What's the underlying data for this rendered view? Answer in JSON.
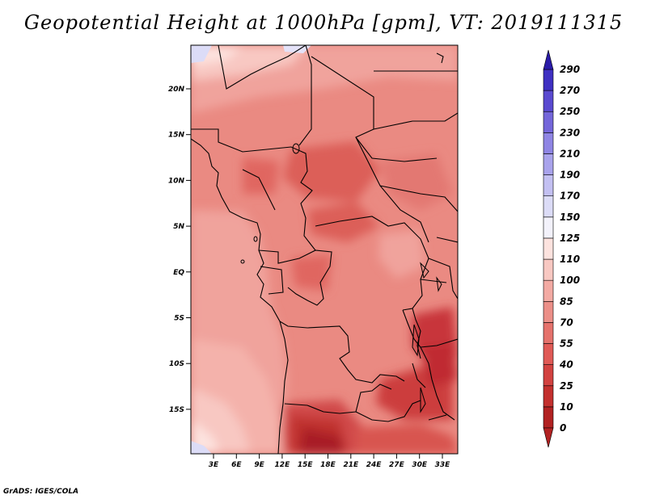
{
  "title": "Geopotential Height at 1000hPa [gpm], VT: 2019111315",
  "credit": "GrADS: IGES/COLA",
  "map": {
    "lat_ticks": [
      "20N",
      "15N",
      "10N",
      "5N",
      "EQ",
      "5S",
      "10S",
      "15S"
    ],
    "lon_ticks": [
      "3E",
      "6E",
      "9E",
      "12E",
      "15E",
      "18E",
      "21E",
      "24E",
      "27E",
      "30E",
      "33E"
    ]
  },
  "colorbar": {
    "levels": [
      "0",
      "10",
      "25",
      "40",
      "55",
      "70",
      "85",
      "100",
      "110",
      "125",
      "150",
      "170",
      "190",
      "210",
      "230",
      "250",
      "270",
      "290"
    ],
    "colors": [
      "#b22222",
      "#c3302e",
      "#d24240",
      "#e05a56",
      "#e5726c",
      "#ec8f88",
      "#f3aaa3",
      "#f8c8c2",
      "#fde3df",
      "#f3f2fb",
      "#dcdcf7",
      "#c3c0f2",
      "#a9a3ec",
      "#8f85e4",
      "#7466da",
      "#5a4ad0",
      "#3f30c2",
      "#2a1ba8"
    ]
  },
  "colors": {
    "ocean_pink": "#f0a39c",
    "land_base": "#ea8a82",
    "land_dark": "#dc5e58",
    "deep_red": "#b8222a",
    "pale_pink": "#fad7d2",
    "white": "#fdf3f1",
    "lavender": "#dcdcf7"
  }
}
